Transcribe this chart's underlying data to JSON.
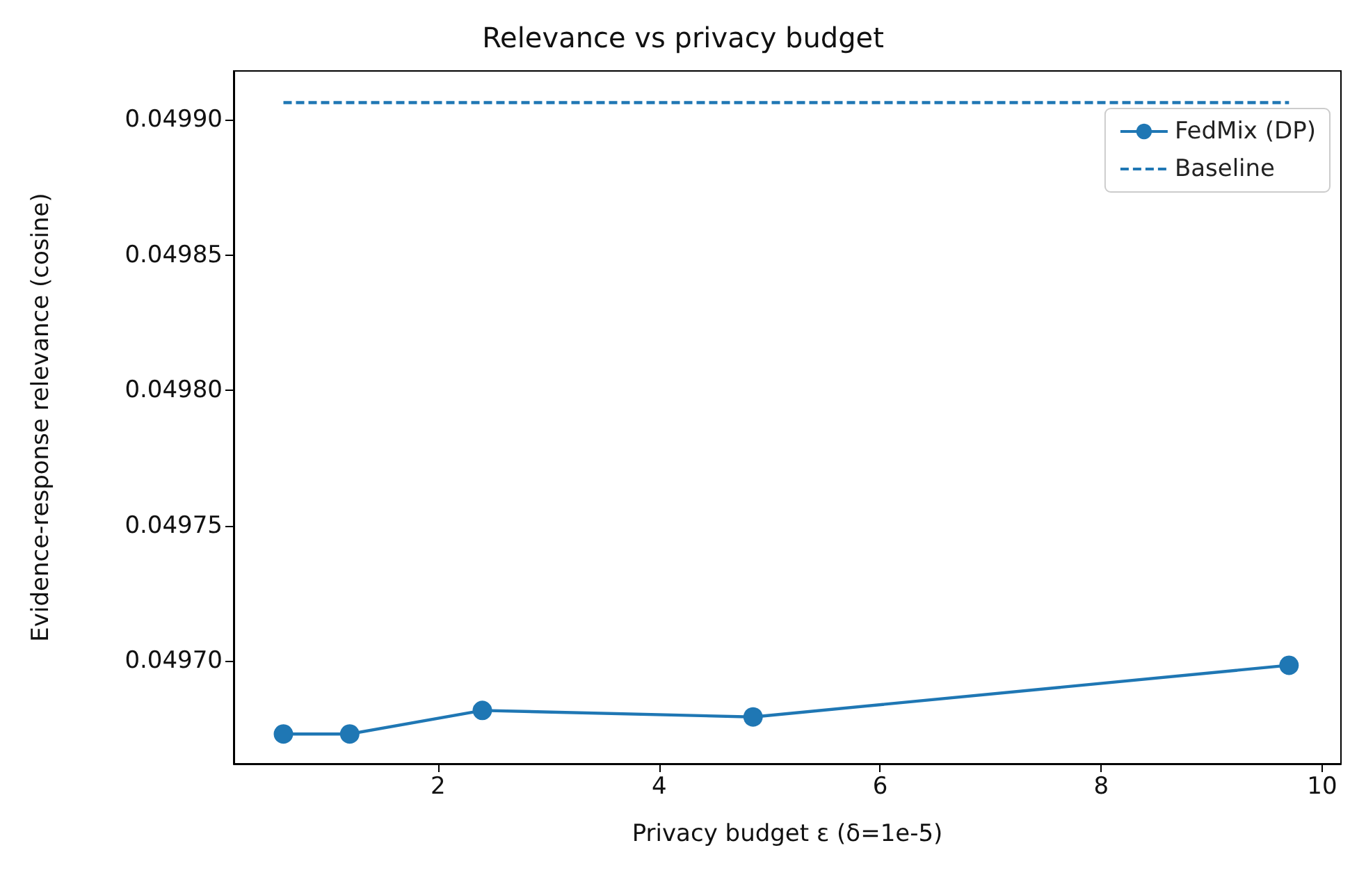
{
  "chart_data": {
    "type": "line",
    "title": "Relevance vs privacy budget",
    "xlabel": "Privacy budget ε (δ=1e-5)",
    "ylabel": "Evidence-response relevance (cosine)",
    "series": [
      {
        "name": "FedMix (DP)",
        "color": "#1f77b4",
        "x": [
          0.6,
          1.2,
          2.4,
          4.85,
          9.7
        ],
        "values": [
          0.049673,
          0.049673,
          0.0496817,
          0.0496793,
          0.0496984
        ],
        "marker": "circle",
        "line_style": "solid"
      },
      {
        "name": "Baseline",
        "color": "#1f77b4",
        "x": [
          0.6,
          9.7
        ],
        "values": [
          0.0499063,
          0.0499063
        ],
        "marker": "none",
        "line_style": "dashed"
      }
    ],
    "xlim": [
      0.15,
      10.17
    ],
    "ylim": [
      0.049662,
      0.049918
    ],
    "xticks": [
      2,
      4,
      6,
      8,
      10
    ],
    "yticks": [
      {
        "value": 0.0497,
        "label": "0.04970"
      },
      0.04975,
      {
        "value": 0.0498,
        "label": "0.04980"
      },
      0.04985,
      {
        "value": 0.0499,
        "label": "0.04990"
      }
    ],
    "grid": false,
    "legend": "top right"
  }
}
